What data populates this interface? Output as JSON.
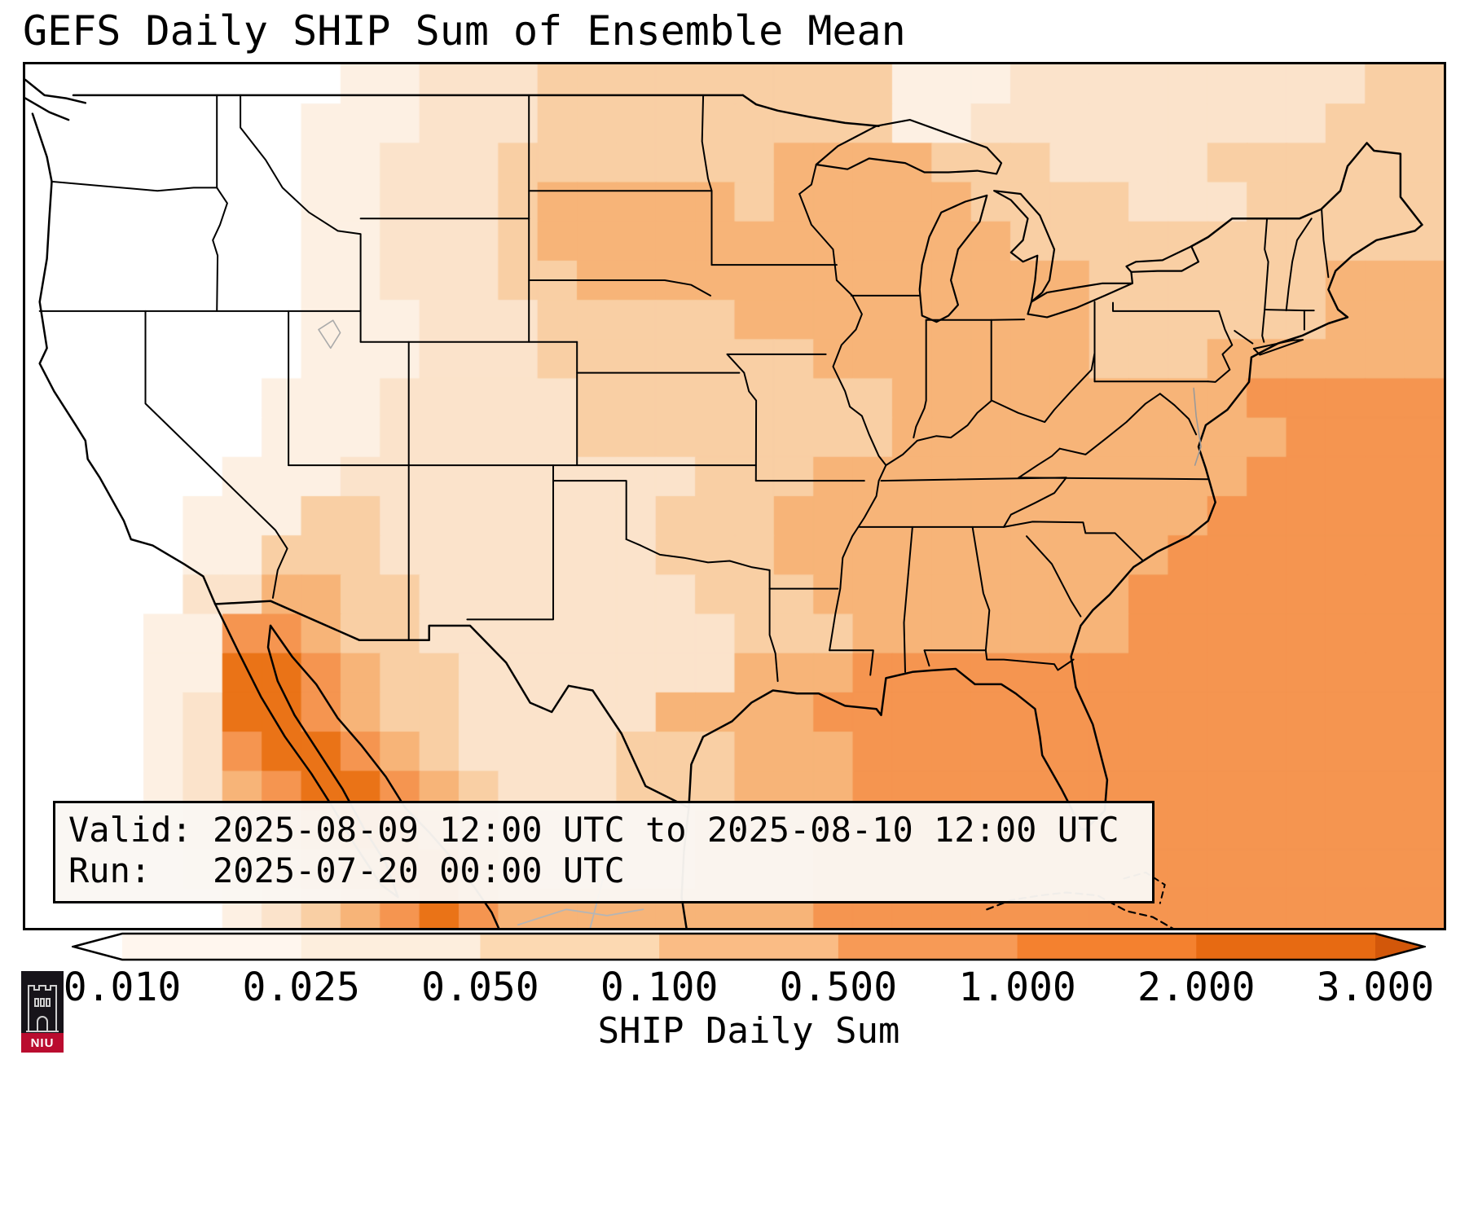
{
  "title": "GEFS Daily SHIP Sum of Ensemble Mean",
  "annotation": {
    "valid_line": "Valid: 2025-08-09 12:00 UTC to 2025-08-10 12:00 UTC",
    "run_line": "Run:   2025-07-20 00:00 UTC"
  },
  "colorbar": {
    "label": "SHIP Daily Sum",
    "ticks": [
      "0.010",
      "0.025",
      "0.050",
      "0.100",
      "0.500",
      "1.000",
      "2.000",
      "3.000"
    ],
    "under_color": "#ffffff",
    "over_color": "#d2570a",
    "segment_colors": [
      "#fff6ee",
      "#fdeedd",
      "#fcd9b2",
      "#fabc85",
      "#f79a56",
      "#f4812f",
      "#e76a12"
    ]
  },
  "logo": {
    "text": "NIU"
  },
  "chart_data": {
    "type": "heatmap",
    "title": "GEFS Daily SHIP Sum of Ensemble Mean",
    "colorbar_label": "SHIP Daily Sum",
    "levels": [
      0.01,
      0.025,
      0.05,
      0.1,
      0.5,
      1.0,
      2.0,
      3.0
    ],
    "extend": "both",
    "valid": "2025-08-09 12:00 UTC to 2025-08-10 12:00 UTC",
    "run": "2025-07-20 00:00 UTC",
    "palette": [
      "#ffffff",
      "#fdf0e3",
      "#fbe3cb",
      "#f9cfa4",
      "#f7b478",
      "#f59550",
      "#ea7317",
      "#cc5507"
    ],
    "grid_note": "approximate shading-intensity field over the map; each digit is an index into palette (0=lowest/white, 7=highest/dark orange)",
    "grid_rows": [
      "000000001122233333333311122222222233",
      "000000011122233333333311222222222333",
      "000000011222333333344443332222333333",
      "000000011222344444344444333322233333",
      "000000011222344444444444433333333333",
      "000000011222334444444444444333333444",
      "000000011122233333444444444333333444",
      "000000011122233333334444444333444444",
      "000000111222223333333344444444455555",
      "000000111222223333333344444444445555",
      "000001112222222223334444444444455555",
      "000011133222222233344444444444555555",
      "000011333222222233344444444445555555",
      "000022443322222223334444444455555555",
      "000115543322222222333444444455555555",
      "000116654332222222444555555555555555",
      "000126654332222244445555555555555555",
      "000125665432222333444555555555555555",
      "000124566543222333444555555555555555",
      "000123456654333334445555555555555555",
      "000012345665433334445555555555555555",
      "000001234565444444445555555555555555"
    ]
  }
}
